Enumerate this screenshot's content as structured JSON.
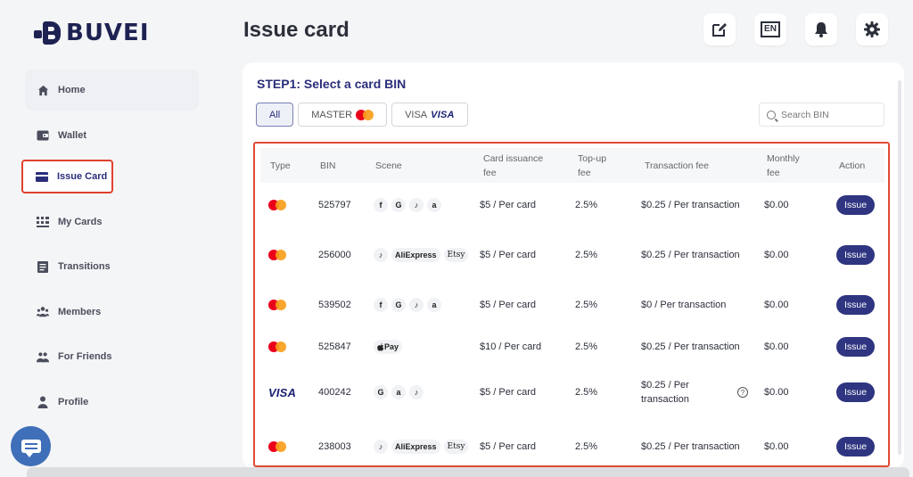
{
  "brand": {
    "name": "BUVEI"
  },
  "sidebar": {
    "items": [
      {
        "label": "Home",
        "icon": "home-icon"
      },
      {
        "label": "Wallet",
        "icon": "wallet-icon"
      },
      {
        "label": "Issue Card",
        "icon": "card-icon"
      },
      {
        "label": "My Cards",
        "icon": "grid-icon"
      },
      {
        "label": "Transitions",
        "icon": "list-icon"
      },
      {
        "label": "Members",
        "icon": "members-icon"
      },
      {
        "label": "For Friends",
        "icon": "friends-icon"
      },
      {
        "label": "Profile",
        "icon": "profile-icon"
      }
    ],
    "active": "Issue Card"
  },
  "header": {
    "title": "Issue card",
    "language": "EN"
  },
  "main": {
    "step_title": "STEP1: Select a card BIN",
    "filters": {
      "all": "All",
      "master": "MASTER",
      "visa": "VISA"
    },
    "search_placeholder": "Search BIN",
    "columns": {
      "type": "Type",
      "bin": "BIN",
      "scene": "Scene",
      "issuance_fee": [
        "Card issuance",
        "fee"
      ],
      "topup_fee": [
        "Top-up",
        "fee"
      ],
      "tx_fee": "Transaction fee",
      "monthly_fee": [
        "Monthly",
        "fee"
      ],
      "action": "Action"
    },
    "rows": [
      {
        "type": "mastercard",
        "bin": "525797",
        "scenes": [
          "f",
          "G",
          "♪",
          "a"
        ],
        "issuance": "$5 / Per card",
        "topup": "2.5%",
        "tx": "$0.25 / Per transaction",
        "monthly": "$0.00",
        "action": "Issue"
      },
      {
        "type": "mastercard",
        "bin": "256000",
        "scenes": [
          "♪",
          "AliExpress",
          "Etsy"
        ],
        "issuance": "$5 / Per card",
        "topup": "2.5%",
        "tx": "$0.25 / Per transaction",
        "monthly": "$0.00",
        "action": "Issue"
      },
      {
        "type": "mastercard",
        "bin": "539502",
        "scenes": [
          "f",
          "G",
          "♪",
          "a"
        ],
        "issuance": "$5 / Per card",
        "topup": "2.5%",
        "tx": "$0 / Per transaction",
        "monthly": "$0.00",
        "action": "Issue"
      },
      {
        "type": "mastercard",
        "bin": "525847",
        "scenes": [
          "Pay"
        ],
        "issuance": "$10 / Per card",
        "topup": "2.5%",
        "tx": "$0.25 / Per transaction",
        "monthly": "$0.00",
        "action": "Issue"
      },
      {
        "type": "visa",
        "bin": "400242",
        "scenes": [
          "G",
          "a",
          "♪"
        ],
        "issuance": "$5 / Per card",
        "topup": "2.5%",
        "tx": "$0.25 / Per transaction",
        "monthly": "$0.00",
        "action": "Issue"
      },
      {
        "type": "mastercard",
        "bin": "238003",
        "scenes": [
          "♪",
          "AliExpress",
          "Etsy"
        ],
        "issuance": "$5 / Per card",
        "topup": "2.5%",
        "tx": "$0.25 / Per transaction",
        "monthly": "$0.00",
        "action": "Issue"
      }
    ]
  },
  "colors": {
    "brand": "#1e2252",
    "primary": "#2f3580",
    "highlight": "#e24a35",
    "mastercard_red": "#eb001b",
    "mastercard_orange": "#f79e1b",
    "visa": "#1a1f71"
  }
}
